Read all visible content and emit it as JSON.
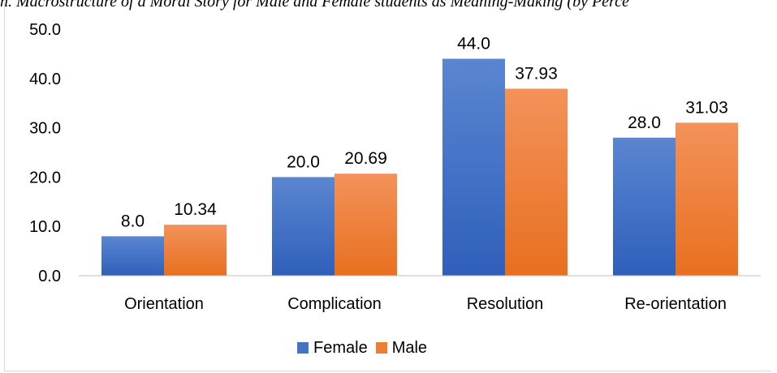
{
  "caption": "n. Macrostructure of a Moral Story for Male and Female students as Meaning-Making (by Perce",
  "colors": {
    "female": "#4472c4",
    "male": "#ed7d31"
  },
  "chart_data": {
    "type": "bar",
    "categories": [
      "Orientation",
      "Complication",
      "Resolution",
      "Re-orientation"
    ],
    "series": [
      {
        "name": "Female",
        "values": [
          8.0,
          20.0,
          44.0,
          28.0
        ],
        "labels": [
          "8.0",
          "20.0",
          "44.0",
          "28.0"
        ]
      },
      {
        "name": "Male",
        "values": [
          10.34,
          20.69,
          37.93,
          31.03
        ],
        "labels": [
          "10.34",
          "20.69",
          "37.93",
          "31.03"
        ]
      }
    ],
    "yticks": [
      "0.0",
      "10.0",
      "20.0",
      "30.0",
      "40.0",
      "50.0"
    ],
    "ylim": [
      0,
      50
    ],
    "grid": false,
    "legend": "bottom"
  }
}
